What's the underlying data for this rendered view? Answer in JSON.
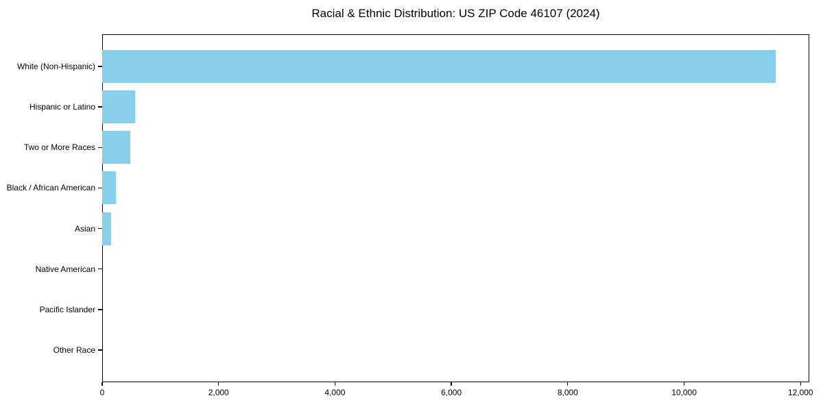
{
  "page": {
    "background": "#ffffff"
  },
  "chart_data": {
    "type": "bar",
    "orientation": "horizontal",
    "title": "Racial & Ethnic Distribution: US ZIP Code 46107 (2024)",
    "categories": [
      "White (Non-Hispanic)",
      "Hispanic or Latino",
      "Two or More Races",
      "Black / African American",
      "Asian",
      "Native American",
      "Pacific Islander",
      "Other Race"
    ],
    "values": [
      11570,
      570,
      480,
      240,
      150,
      0,
      0,
      0
    ],
    "xlabel": "",
    "ylabel": "",
    "xlim": [
      0,
      12150
    ],
    "x_ticks": [
      0,
      2000,
      4000,
      6000,
      8000,
      10000,
      12000
    ],
    "x_tick_labels": [
      "0",
      "2,000",
      "4,000",
      "6,000",
      "8,000",
      "10,000",
      "12,000"
    ],
    "grid": false,
    "legend": false,
    "bar_color": "#87CEEB",
    "axis_color": "#000000",
    "text_color": "#000000",
    "plot_background": "#ffffff"
  }
}
